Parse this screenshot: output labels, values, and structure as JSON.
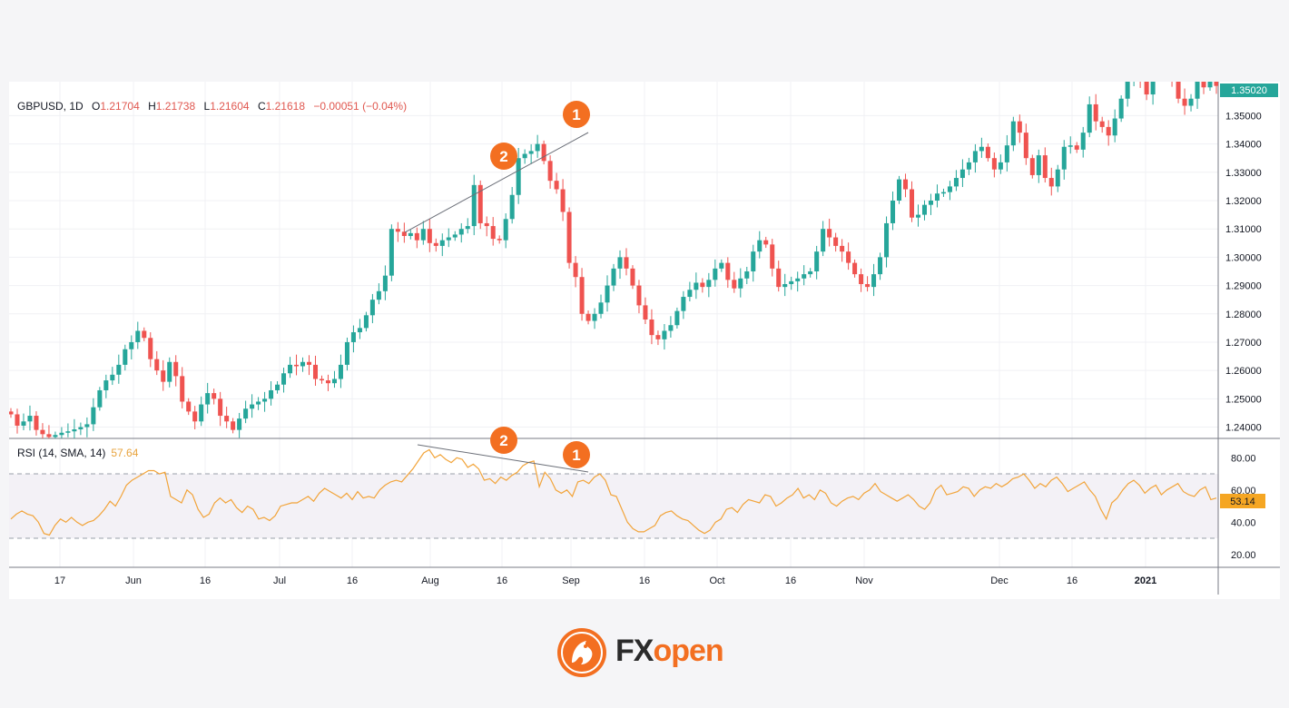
{
  "legend": {
    "symbol": "GBPUSD, 1D",
    "o_label": "O",
    "o_value": "1.21704",
    "h_label": "H",
    "h_value": "1.21738",
    "l_label": "L",
    "l_value": "1.21604",
    "c_label": "C",
    "c_value": "1.21618",
    "change": "−0.00051 (−0.04%)"
  },
  "rsi_legend": {
    "label": "RSI (14, SMA, 14)",
    "value": "57.64"
  },
  "logo": {
    "fx": "FX",
    "open": "open"
  },
  "colors": {
    "up": "#26a69a",
    "down": "#ef5350",
    "rsi_line": "#f2a43a",
    "marker": "#f36f21",
    "price_tag": "#26a69a",
    "rsi_tag": "#f5a623"
  },
  "chart_data": [
    {
      "type": "candlestick",
      "symbol": "GBPUSD",
      "timeframe": "1D",
      "ylim": [
        1.236,
        1.362
      ],
      "y_ticks": [
        "1.35000",
        "1.34000",
        "1.33000",
        "1.32000",
        "1.31000",
        "1.30000",
        "1.29000",
        "1.28000",
        "1.27000",
        "1.26000",
        "1.25000",
        "1.24000"
      ],
      "x_ticks": [
        "17",
        "Jun",
        "16",
        "Jul",
        "16",
        "Aug",
        "16",
        "Sep",
        "16",
        "Oct",
        "16",
        "Nov",
        "Dec",
        "16",
        "2021"
      ],
      "x_ticks_bold": [
        "2021"
      ],
      "current_price_tag": "1.35020",
      "closes": [
        1.2445,
        1.2405,
        1.242,
        1.244,
        1.239,
        1.2375,
        1.2365,
        1.2372,
        1.238,
        1.2385,
        1.2392,
        1.24,
        1.241,
        1.247,
        1.253,
        1.2565,
        1.2585,
        1.262,
        1.2675,
        1.27,
        1.274,
        1.2715,
        1.264,
        1.26,
        1.256,
        1.263,
        1.258,
        1.249,
        1.2455,
        1.242,
        1.248,
        1.252,
        1.25,
        1.244,
        1.242,
        1.239,
        1.243,
        1.2465,
        1.248,
        1.249,
        1.25,
        1.253,
        1.255,
        1.259,
        1.262,
        1.2615,
        1.263,
        1.262,
        1.257,
        1.2565,
        1.2555,
        1.257,
        1.262,
        1.27,
        1.2735,
        1.275,
        1.2795,
        1.285,
        1.288,
        1.2935,
        1.31,
        1.309,
        1.3075,
        1.3085,
        1.306,
        1.31,
        1.305,
        1.304,
        1.306,
        1.307,
        1.308,
        1.31,
        1.311,
        1.3255,
        1.312,
        1.311,
        1.3065,
        1.306,
        1.3135,
        1.322,
        1.335,
        1.3365,
        1.3375,
        1.34,
        1.334,
        1.327,
        1.324,
        1.316,
        1.298,
        1.293,
        1.28,
        1.2775,
        1.28,
        1.284,
        1.29,
        1.296,
        1.3,
        1.296,
        1.29,
        1.283,
        1.278,
        1.2725,
        1.271,
        1.274,
        1.276,
        1.281,
        1.286,
        1.2885,
        1.291,
        1.2895,
        1.292,
        1.296,
        1.298,
        1.292,
        1.289,
        1.2925,
        1.295,
        1.302,
        1.306,
        1.3045,
        1.296,
        1.2895,
        1.2905,
        1.2915,
        1.2925,
        1.294,
        1.295,
        1.302,
        1.31,
        1.307,
        1.304,
        1.302,
        1.298,
        1.294,
        1.2905,
        1.2895,
        1.294,
        1.3,
        1.312,
        1.32,
        1.3275,
        1.324,
        1.314,
        1.315,
        1.3185,
        1.32,
        1.3225,
        1.323,
        1.325,
        1.328,
        1.331,
        1.3335,
        1.3375,
        1.339,
        1.335,
        1.331,
        1.3335,
        1.3395,
        1.348,
        1.344,
        1.335,
        1.329,
        1.336,
        1.328,
        1.325,
        1.331,
        1.339,
        1.3395,
        1.338,
        1.344,
        1.354,
        1.348,
        1.346,
        1.343,
        1.349,
        1.356,
        1.362,
        1.369,
        1.363,
        1.3575,
        1.3655,
        1.369,
        1.372,
        1.363,
        1.356,
        1.3535,
        1.356,
        1.364,
        1.36,
        1.367,
        1.3605
      ]
    },
    {
      "type": "line",
      "name": "RSI (14, SMA, 14)",
      "ylim": [
        12,
        92
      ],
      "y_ticks": [
        "80.00",
        "60.00",
        "40.00",
        "20.00"
      ],
      "bands": [
        70,
        30
      ],
      "current_value_tag": "53.14",
      "values": [
        42,
        45,
        47,
        45,
        44,
        40,
        33,
        32,
        38,
        42,
        40,
        43,
        40,
        38,
        40,
        41,
        44,
        48,
        53,
        50,
        56,
        63,
        66,
        68,
        70,
        72,
        72,
        70,
        71,
        56,
        54,
        52,
        60,
        57,
        48,
        43,
        45,
        52,
        55,
        52,
        54,
        49,
        46,
        50,
        48,
        42,
        43,
        41,
        44,
        50,
        51,
        52,
        52,
        54,
        56,
        53,
        58,
        61,
        59,
        57,
        55,
        58,
        54,
        59,
        55,
        56,
        55,
        60,
        63,
        65,
        66,
        65,
        69,
        73,
        78,
        83,
        85,
        80,
        82,
        79,
        77,
        80,
        79,
        74,
        76,
        73,
        66,
        67,
        64,
        68,
        66,
        69,
        71,
        75,
        77,
        78,
        62,
        71,
        67,
        60,
        58,
        60,
        56,
        65,
        66,
        64,
        68,
        70,
        66,
        57,
        56,
        48,
        40,
        36,
        34,
        34,
        36,
        38,
        44,
        46,
        47,
        44,
        42,
        41,
        38,
        35,
        33,
        35,
        40,
        42,
        48,
        49,
        46,
        51,
        54,
        53,
        52,
        57,
        56,
        50,
        52,
        55,
        57,
        61,
        55,
        57,
        54,
        60,
        58,
        52,
        50,
        53,
        55,
        56,
        54,
        58,
        60,
        64,
        59,
        57,
        55,
        53,
        55,
        57,
        54,
        50,
        48,
        52,
        60,
        63,
        57,
        58,
        59,
        62,
        61,
        56,
        60,
        62,
        61,
        64,
        62,
        64,
        67,
        68,
        70,
        66,
        61,
        64,
        62,
        66,
        68,
        64,
        59,
        61,
        63,
        65,
        60,
        56,
        48,
        42,
        52,
        55,
        60,
        64,
        66,
        63,
        58,
        61,
        63,
        57,
        60,
        62,
        64,
        59,
        57,
        56,
        60,
        62,
        54,
        55
      ]
    }
  ]
}
